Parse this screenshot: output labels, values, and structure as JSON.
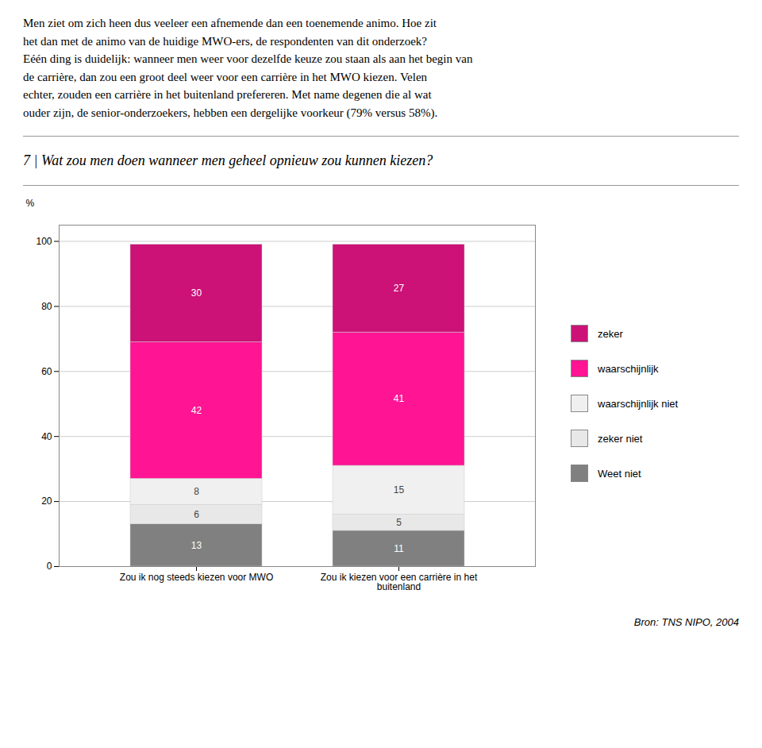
{
  "chart_data": {
    "type": "bar",
    "stacked": true,
    "title": "7 | Wat zou men doen wanneer men geheel opnieuw zou kunnen kiezen?",
    "paragraph": [
      "Men ziet om zich heen dus veeleer een afnemende dan een toenemende animo. Hoe zit",
      "het dan met de animo van de huidige MWO-ers, de respondenten van dit onderzoek?",
      "Eéén ding is duidelijk: wanneer men weer voor dezelfde keuze zou staan als aan het begin van",
      "de carrière, dan zou een groot deel weer voor een carrière in het MWO kiezen. Velen",
      "echter, zouden een carrière in het buitenland prefereren. Met name degenen die al wat",
      "ouder zijn, de senior-onderzoekers, hebben een dergelijke voorkeur (79% versus 58%)."
    ],
    "categories": [
      "Zou ik nog steeds kiezen voor MWO",
      "Zou ik kiezen voor een carrière in het\nbuitenland"
    ],
    "series": [
      {
        "name": "Weet niet",
        "color": "#808080",
        "values": [
          13,
          11
        ]
      },
      {
        "name": "zeker niet",
        "color": "#e8e8e8",
        "values": [
          6,
          5
        ]
      },
      {
        "name": "waarschijnlijk niet",
        "color": "#f0f0f0",
        "values": [
          8,
          15
        ]
      },
      {
        "name": "waarschijnlijk",
        "color": "#ff1493",
        "values": [
          42,
          41
        ]
      },
      {
        "name": "zeker",
        "color": "#cc1177",
        "values": [
          30,
          27
        ]
      }
    ],
    "ylabel": "%",
    "ylim": [
      0,
      105
    ],
    "yticks": [
      0,
      20,
      40,
      60,
      80,
      100
    ],
    "grid": true,
    "legend": "right",
    "data_labels": true,
    "source": "Bron: TNS NIPO, 2004"
  }
}
